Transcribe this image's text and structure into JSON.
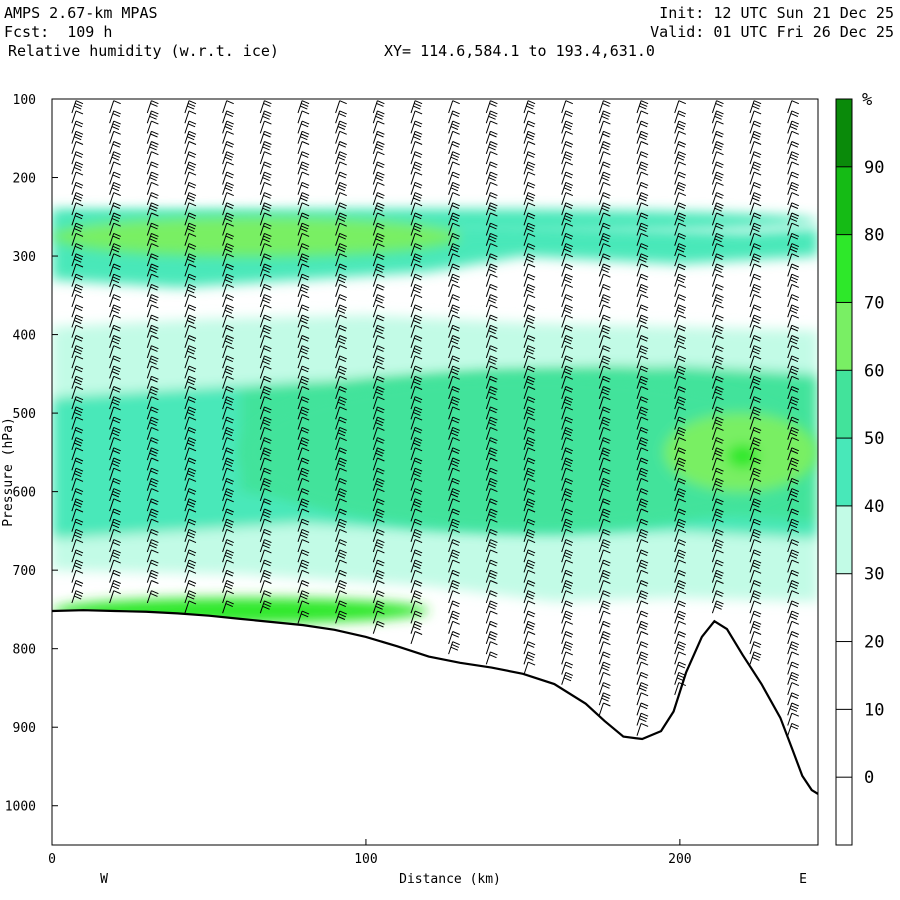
{
  "header": {
    "model": "AMPS 2.67-km MPAS",
    "fcst": "Fcst:  109 h",
    "field": "Relative humidity (w.r.t. ice)",
    "init": "Init: 12 UTC Sun 21 Dec 25",
    "valid": "Valid: 01 UTC Fri 26 Dec 25",
    "xy": "XY= 114.6,584.1 to 193.4,631.0"
  },
  "chart_data": {
    "type": "heatmap",
    "title": "Relative humidity (w.r.t. ice)",
    "xlabel": "Distance (km)",
    "ylabel": "Pressure (hPa)",
    "xlim": [
      0,
      244
    ],
    "ylim": [
      1050,
      100
    ],
    "x_ticks": [
      "0",
      "100",
      "200"
    ],
    "y_ticks": [
      "100",
      "200",
      "300",
      "400",
      "500",
      "600",
      "700",
      "800",
      "900",
      "1000"
    ],
    "end_labels": {
      "left": "W",
      "right": "E"
    },
    "colorbar": {
      "unit": "%",
      "ticks": [
        "0",
        "10",
        "20",
        "30",
        "40",
        "50",
        "60",
        "70",
        "80",
        "90"
      ],
      "levels": [
        30,
        40,
        50,
        60,
        70,
        80,
        90
      ],
      "colors": [
        "#ffffff",
        "#c2fbe6",
        "#48e8b9",
        "#42e39b",
        "#79ef64",
        "#2ee82a",
        "#15bb15",
        "#0a8a0a"
      ]
    },
    "terrain_pressure_hPa": [
      [
        0,
        752
      ],
      [
        10,
        751
      ],
      [
        20,
        752
      ],
      [
        30,
        753
      ],
      [
        40,
        755
      ],
      [
        50,
        758
      ],
      [
        60,
        762
      ],
      [
        70,
        766
      ],
      [
        80,
        770
      ],
      [
        90,
        776
      ],
      [
        100,
        785
      ],
      [
        110,
        797
      ],
      [
        120,
        810
      ],
      [
        130,
        818
      ],
      [
        140,
        824
      ],
      [
        150,
        832
      ],
      [
        160,
        845
      ],
      [
        170,
        870
      ],
      [
        176,
        892
      ],
      [
        182,
        912
      ],
      [
        188,
        915
      ],
      [
        194,
        905
      ],
      [
        198,
        880
      ],
      [
        202,
        830
      ],
      [
        207,
        785
      ],
      [
        211,
        765
      ],
      [
        215,
        775
      ],
      [
        220,
        808
      ],
      [
        226,
        845
      ],
      [
        232,
        888
      ],
      [
        236,
        930
      ],
      [
        239,
        962
      ],
      [
        242,
        980
      ],
      [
        244,
        985
      ]
    ],
    "rh_features": [
      {
        "x": [
          0,
          244
        ],
        "p": [
          240,
          270
        ],
        "rh": 40
      },
      {
        "x": [
          0,
          130
        ],
        "p": [
          250,
          300
        ],
        "rh": 60
      },
      {
        "x": [
          60,
          244
        ],
        "p": [
          450,
          650
        ],
        "rh": 50
      },
      {
        "x": [
          195,
          244
        ],
        "p": [
          500,
          600
        ],
        "rh": 60
      },
      {
        "x": [
          215,
          225
        ],
        "p": [
          540,
          570
        ],
        "rh": 70
      },
      {
        "x": [
          0,
          120
        ],
        "p": [
          735,
          768
        ],
        "rh": 70
      }
    ],
    "wind_barb_columns_km": [
      7,
      19,
      31,
      43,
      55,
      67,
      79,
      91,
      103,
      115,
      127,
      139,
      151,
      163,
      175,
      187,
      199,
      211,
      223,
      235
    ]
  }
}
